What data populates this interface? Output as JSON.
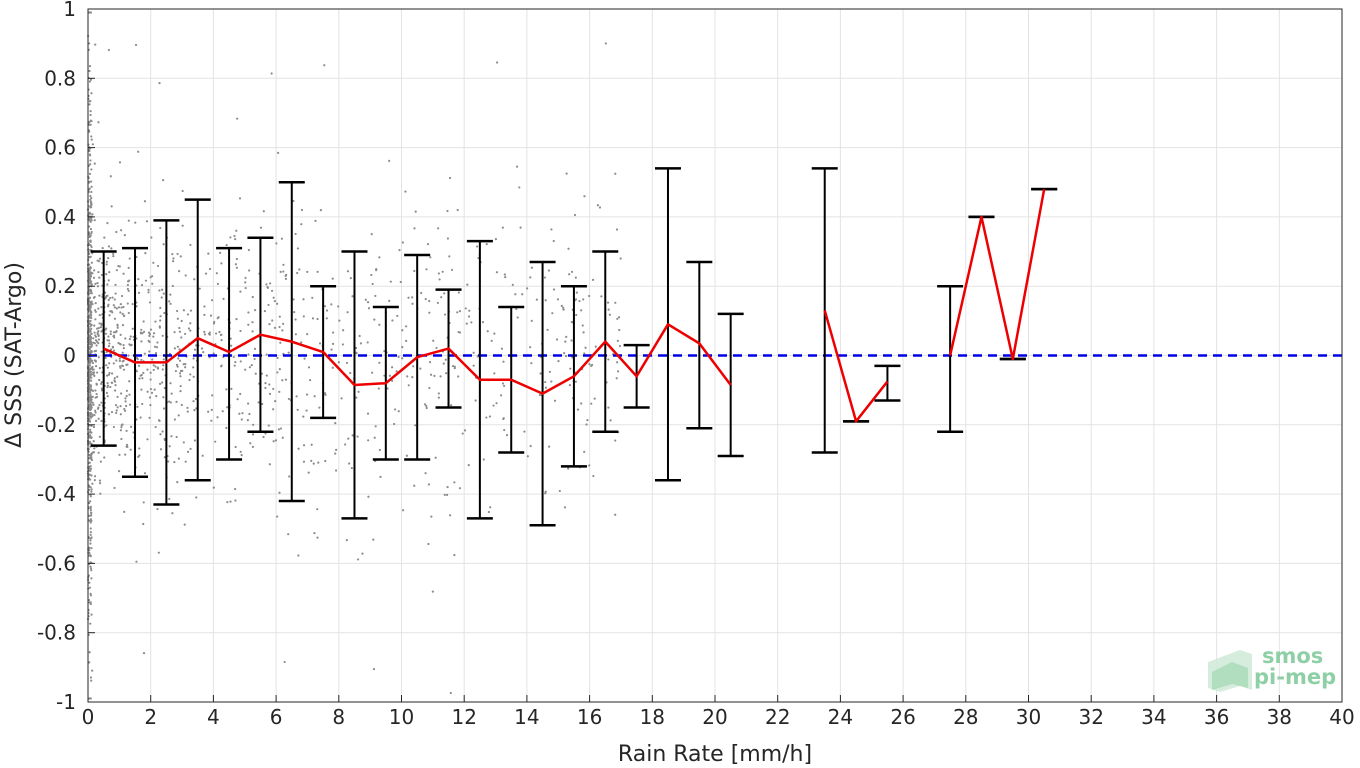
{
  "chart_data": {
    "type": "scatter",
    "xlabel": "Rain Rate [mm/h]",
    "ylabel": "Δ SSS (SAT-Argo)",
    "xlim": [
      0,
      40
    ],
    "ylim": [
      -1,
      1
    ],
    "xticks": [
      "0",
      "2",
      "4",
      "6",
      "8",
      "10",
      "12",
      "14",
      "16",
      "18",
      "20",
      "22",
      "24",
      "26",
      "28",
      "30",
      "32",
      "34",
      "36",
      "38",
      "40"
    ],
    "yticks": [
      "1",
      "0.8",
      "0.6",
      "0.4",
      "0.2",
      "0",
      "-0.2",
      "-0.4",
      "-0.6",
      "-0.8",
      "-1"
    ],
    "grid": true,
    "reference_line": {
      "y": 0,
      "style": "dashed",
      "color": "#0000e6"
    },
    "colors": {
      "mean_line": "#ee0000",
      "error_bars": "#000000",
      "scatter": "#8c8c8c"
    },
    "series": [
      {
        "type": "line",
        "segments": [
          {
            "x": [
              0.5,
              1.5,
              2.5,
              3.5,
              4.5,
              5.5,
              6.5,
              7.5,
              8.5,
              9.5,
              10.5,
              11.5,
              12.5,
              13.5,
              14.5,
              15.5,
              16.5,
              17.5,
              18.5,
              19.5,
              20.5
            ],
            "y": [
              0.02,
              -0.02,
              -0.02,
              0.05,
              0.01,
              0.06,
              0.04,
              0.01,
              -0.085,
              -0.08,
              -0.005,
              0.02,
              -0.07,
              -0.07,
              -0.11,
              -0.06,
              0.04,
              -0.06,
              0.09,
              0.035,
              -0.085
            ]
          },
          {
            "x": [
              23.5,
              24.5,
              25.5
            ],
            "y": [
              0.13,
              -0.19,
              -0.075
            ]
          },
          {
            "x": [
              27.5,
              28.5,
              29.5,
              30.5
            ],
            "y": [
              0.0,
              0.4,
              -0.01,
              0.48
            ]
          }
        ]
      },
      {
        "type": "errorbar",
        "x": [
          0.5,
          1.5,
          2.5,
          3.5,
          4.5,
          5.5,
          6.5,
          7.5,
          8.5,
          9.5,
          10.5,
          11.5,
          12.5,
          13.5,
          14.5,
          15.5,
          16.5,
          17.5,
          18.5,
          19.5,
          20.5,
          23.5,
          24.5,
          25.5,
          27.5,
          28.5,
          29.5,
          30.5
        ],
        "upper": [
          0.3,
          0.31,
          0.39,
          0.45,
          0.31,
          0.34,
          0.5,
          0.2,
          0.3,
          0.14,
          0.29,
          0.19,
          0.33,
          0.14,
          0.27,
          0.2,
          0.3,
          0.03,
          0.54,
          0.27,
          0.12,
          0.54,
          -0.19,
          -0.03,
          0.2,
          0.4,
          -0.01,
          0.48
        ],
        "lower": [
          -0.26,
          -0.35,
          -0.43,
          -0.36,
          -0.3,
          -0.22,
          -0.42,
          -0.18,
          -0.47,
          -0.3,
          -0.3,
          -0.15,
          -0.47,
          -0.28,
          -0.49,
          -0.32,
          -0.22,
          -0.15,
          -0.36,
          -0.21,
          -0.29,
          -0.28,
          -0.19,
          -0.13,
          -0.22,
          0.4,
          -0.01,
          0.48
        ]
      }
    ]
  },
  "logo": {
    "line1": "smos",
    "line2": "pi-mep"
  }
}
